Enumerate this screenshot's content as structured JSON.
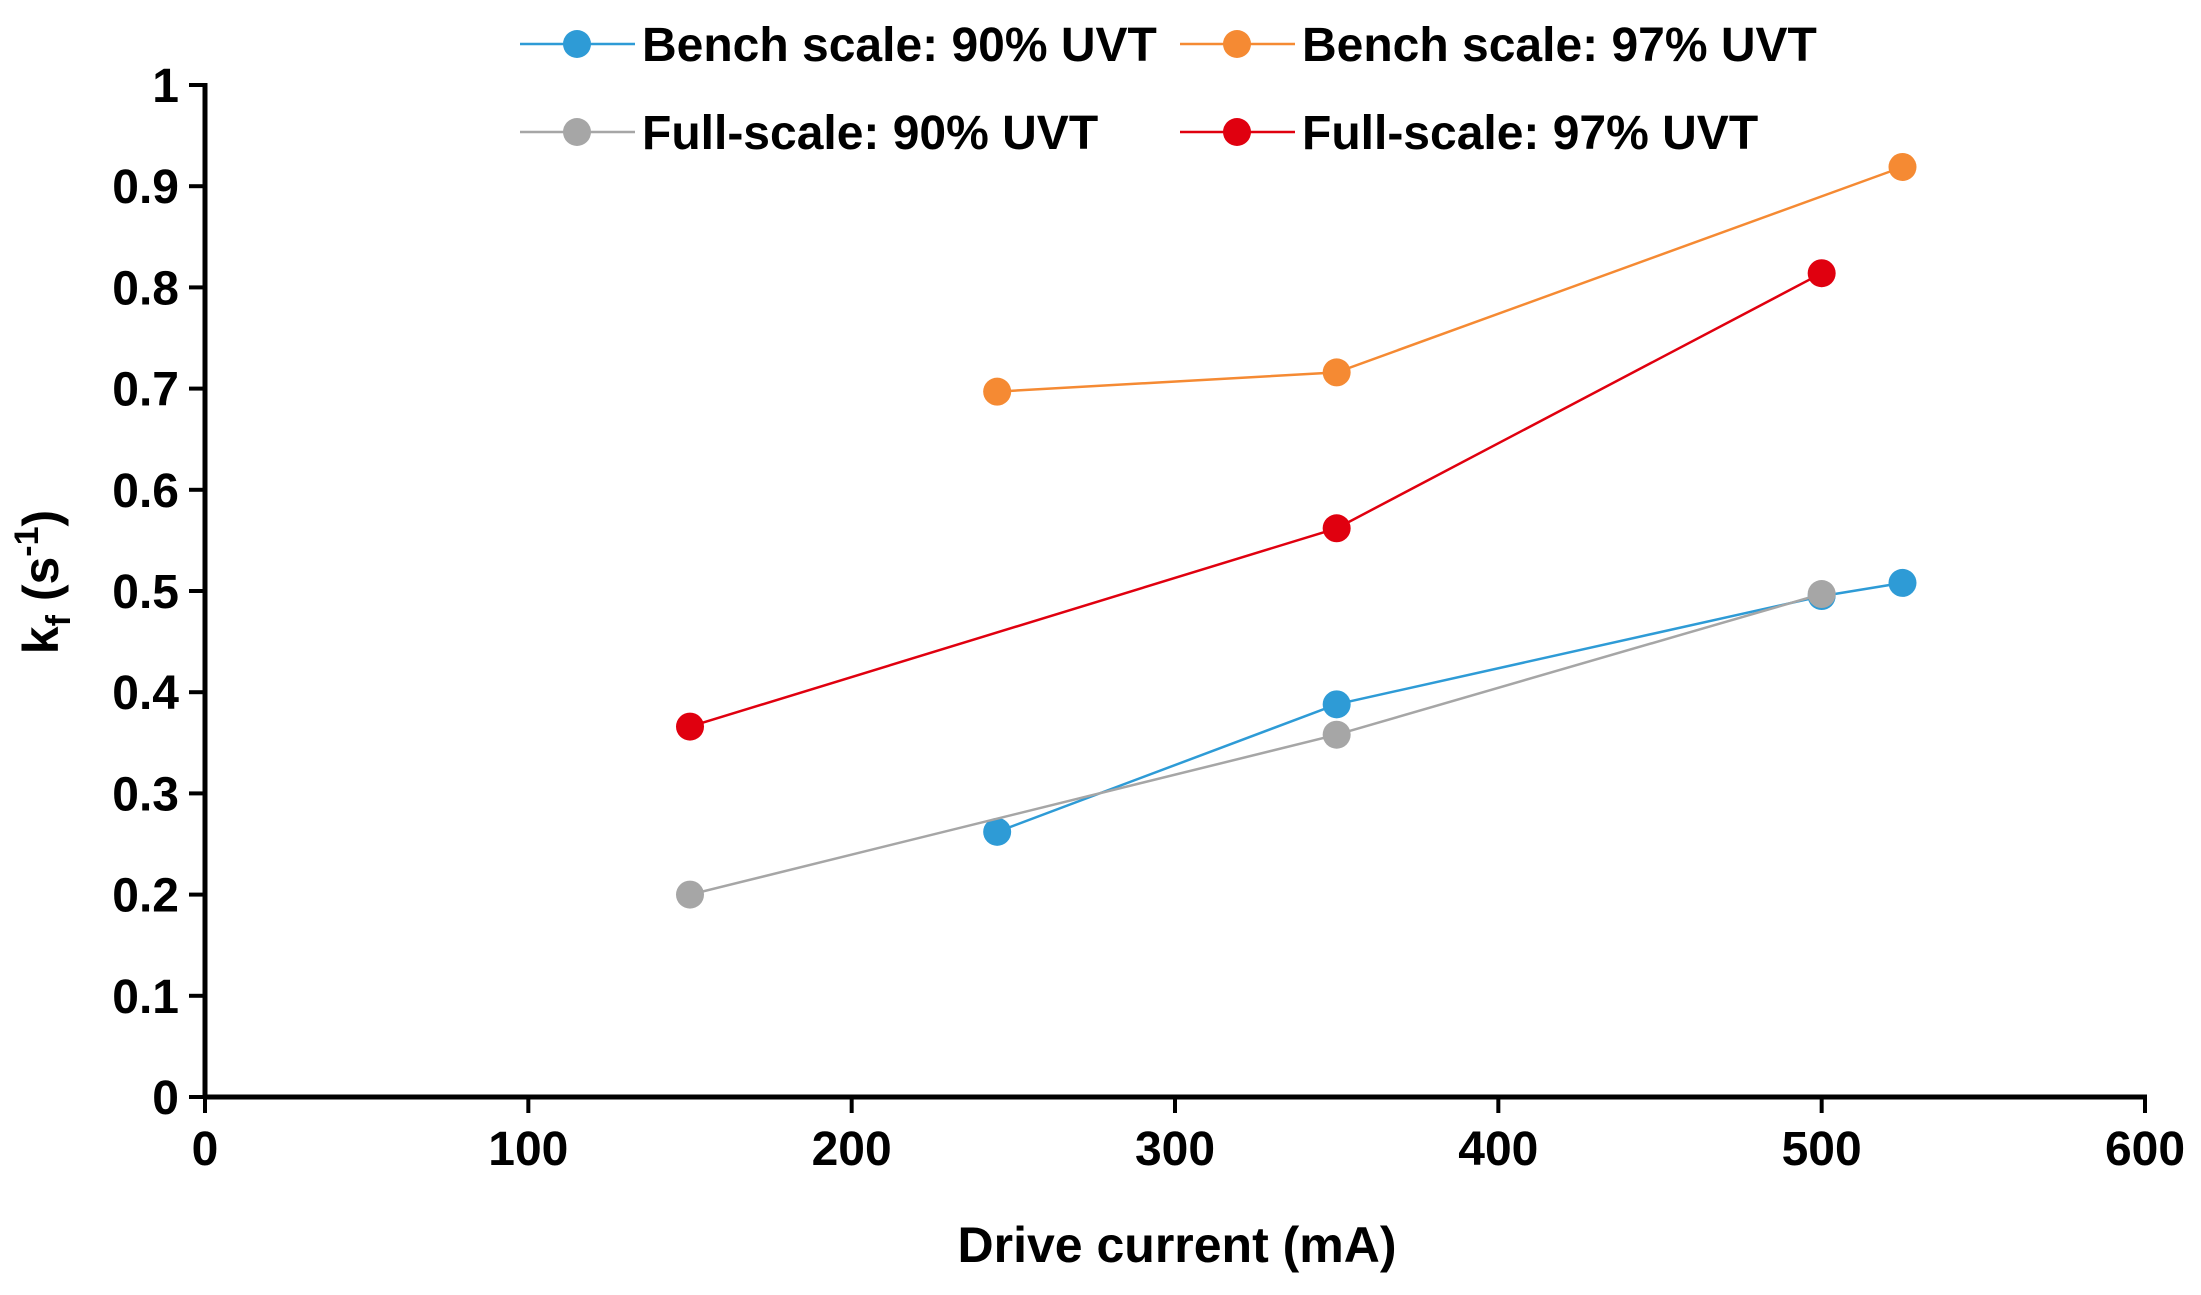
{
  "chart_data": {
    "type": "line",
    "title": "",
    "xlabel": "Drive current (mA)",
    "ylabel_main": "k",
    "ylabel_sub": "f",
    "ylabel_unit_open": " (s",
    "ylabel_sup": "-1",
    "ylabel_unit_close": ")",
    "xlim": [
      0,
      600
    ],
    "ylim": [
      0,
      1
    ],
    "xticks": [
      0,
      100,
      200,
      300,
      400,
      500,
      600
    ],
    "yticks": [
      0,
      0.1,
      0.2,
      0.3,
      0.4,
      0.5,
      0.6,
      0.7,
      0.8,
      0.9,
      1
    ],
    "xtick_labels": [
      "0",
      "100",
      "200",
      "300",
      "400",
      "500",
      "600"
    ],
    "ytick_labels": [
      "0",
      "0.1",
      "0.2",
      "0.3",
      "0.4",
      "0.5",
      "0.6",
      "0.7",
      "0.8",
      "0.9",
      "1"
    ],
    "grid": false,
    "legend_position": "top",
    "series": [
      {
        "name": "Bench scale: 90% UVT",
        "color": "#2E9BD6",
        "x": [
          245,
          350,
          500,
          525
        ],
        "y": [
          0.262,
          0.388,
          0.495,
          0.508
        ]
      },
      {
        "name": "Bench scale: 97% UVT",
        "color": "#F58A33",
        "x": [
          245,
          350,
          525
        ],
        "y": [
          0.697,
          0.716,
          0.919
        ]
      },
      {
        "name": "Full-scale: 90% UVT",
        "color": "#A6A6A6",
        "x": [
          150,
          350,
          500
        ],
        "y": [
          0.2,
          0.358,
          0.497
        ]
      },
      {
        "name": "Full-scale: 97% UVT",
        "color": "#E0000F",
        "x": [
          150,
          350,
          500
        ],
        "y": [
          0.366,
          0.562,
          0.814
        ]
      }
    ]
  }
}
